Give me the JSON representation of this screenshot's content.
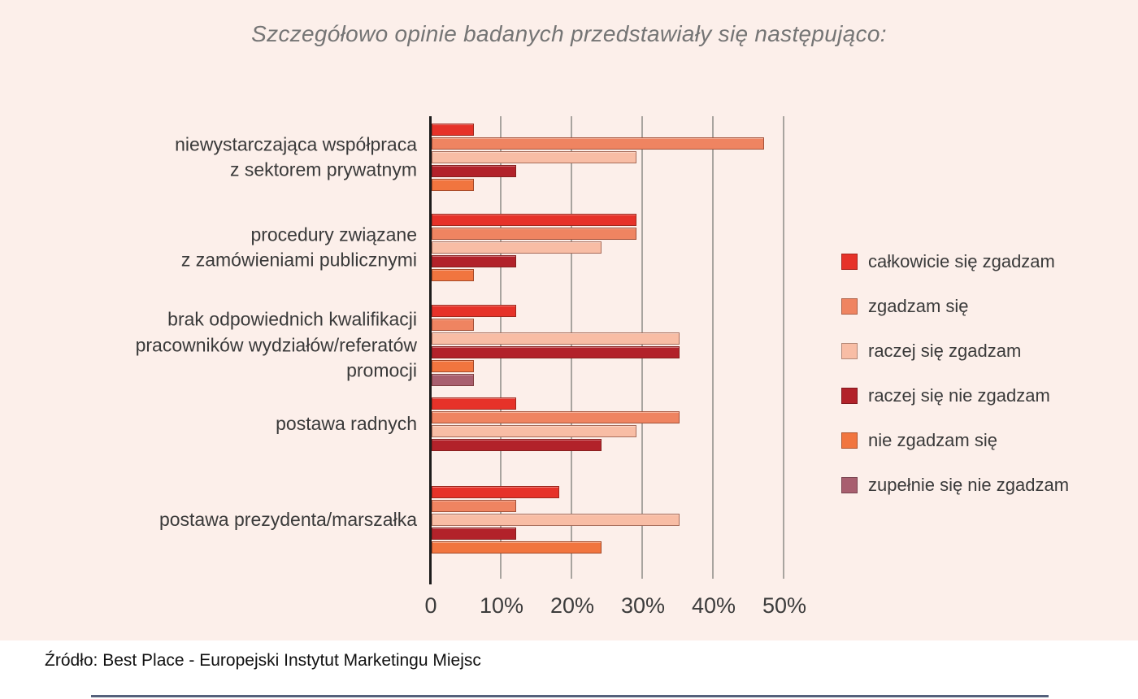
{
  "page": {
    "background_color": "#fcefea",
    "title_color": "#757575",
    "gridline_color": "#a8a49f",
    "axis_color": "#1c1c1c",
    "text_color": "#3a3a3a",
    "bottom_rule_color": "#55617c"
  },
  "chart_data": {
    "type": "bar",
    "orientation": "horizontal",
    "title": "Szczegółowo opinie badanych przedstawiały się następująco:",
    "source": "Źródło: Best Place - Europejski Instytut Marketingu Miejsc",
    "x_axis": {
      "min": 0,
      "max": 50,
      "unit": "percent",
      "tick_labels": [
        "0",
        "10%",
        "20%",
        "30%",
        "40%",
        "50%"
      ],
      "grid": true
    },
    "legend": {
      "position": "right",
      "entries": [
        {
          "label": "całkowicie się zgadzam",
          "color": "#e63229"
        },
        {
          "label": "zgadzam się",
          "color": "#ef8461"
        },
        {
          "label": "raczej się zgadzam",
          "color": "#f8bda5"
        },
        {
          "label": "raczej się nie zgadzam",
          "color": "#b2222a"
        },
        {
          "label": "nie zgadzam się",
          "color": "#f1753f"
        },
        {
          "label": "zupełnie się nie zgadzam",
          "color": "#a85f6f"
        }
      ]
    },
    "groups": [
      {
        "label": "niewystarczająca współpraca\nz sektorem prywatnym",
        "bars": [
          {
            "series": "całkowicie się zgadzam",
            "value": 6
          },
          {
            "series": "zgadzam się",
            "value": 47
          },
          {
            "series": "raczej się zgadzam",
            "value": 29
          },
          {
            "series": "raczej się nie zgadzam",
            "value": 12
          },
          {
            "series": "nie zgadzam się",
            "value": 6
          }
        ]
      },
      {
        "label": "procedury związane\nz zamówieniami publicznymi",
        "bars": [
          {
            "series": "całkowicie się zgadzam",
            "value": 29
          },
          {
            "series": "zgadzam się",
            "value": 29
          },
          {
            "series": "raczej się zgadzam",
            "value": 24
          },
          {
            "series": "raczej się nie zgadzam",
            "value": 12
          },
          {
            "series": "nie zgadzam się",
            "value": 6
          }
        ]
      },
      {
        "label": "brak odpowiednich kwalifikacji\npracowników wydziałów/referatów\npromocji",
        "bars": [
          {
            "series": "całkowicie się zgadzam",
            "value": 12
          },
          {
            "series": "zgadzam się",
            "value": 6
          },
          {
            "series": "raczej się zgadzam",
            "value": 35
          },
          {
            "series": "raczej się nie zgadzam",
            "value": 35
          },
          {
            "series": "nie zgadzam się",
            "value": 6
          },
          {
            "series": "zupełnie się nie zgadzam",
            "value": 6
          }
        ]
      },
      {
        "label": "postawa radnych",
        "bars": [
          {
            "series": "całkowicie się zgadzam",
            "value": 12
          },
          {
            "series": "zgadzam się",
            "value": 35
          },
          {
            "series": "raczej się zgadzam",
            "value": 29
          },
          {
            "series": "raczej się nie zgadzam",
            "value": 24
          }
        ]
      },
      {
        "label": "postawa prezydenta/marszałka",
        "bars": [
          {
            "series": "całkowicie się zgadzam",
            "value": 18
          },
          {
            "series": "zgadzam się",
            "value": 12
          },
          {
            "series": "raczej się zgadzam",
            "value": 35
          },
          {
            "series": "raczej się nie zgadzam",
            "value": 12
          },
          {
            "series": "nie zgadzam się",
            "value": 24
          }
        ]
      }
    ]
  }
}
